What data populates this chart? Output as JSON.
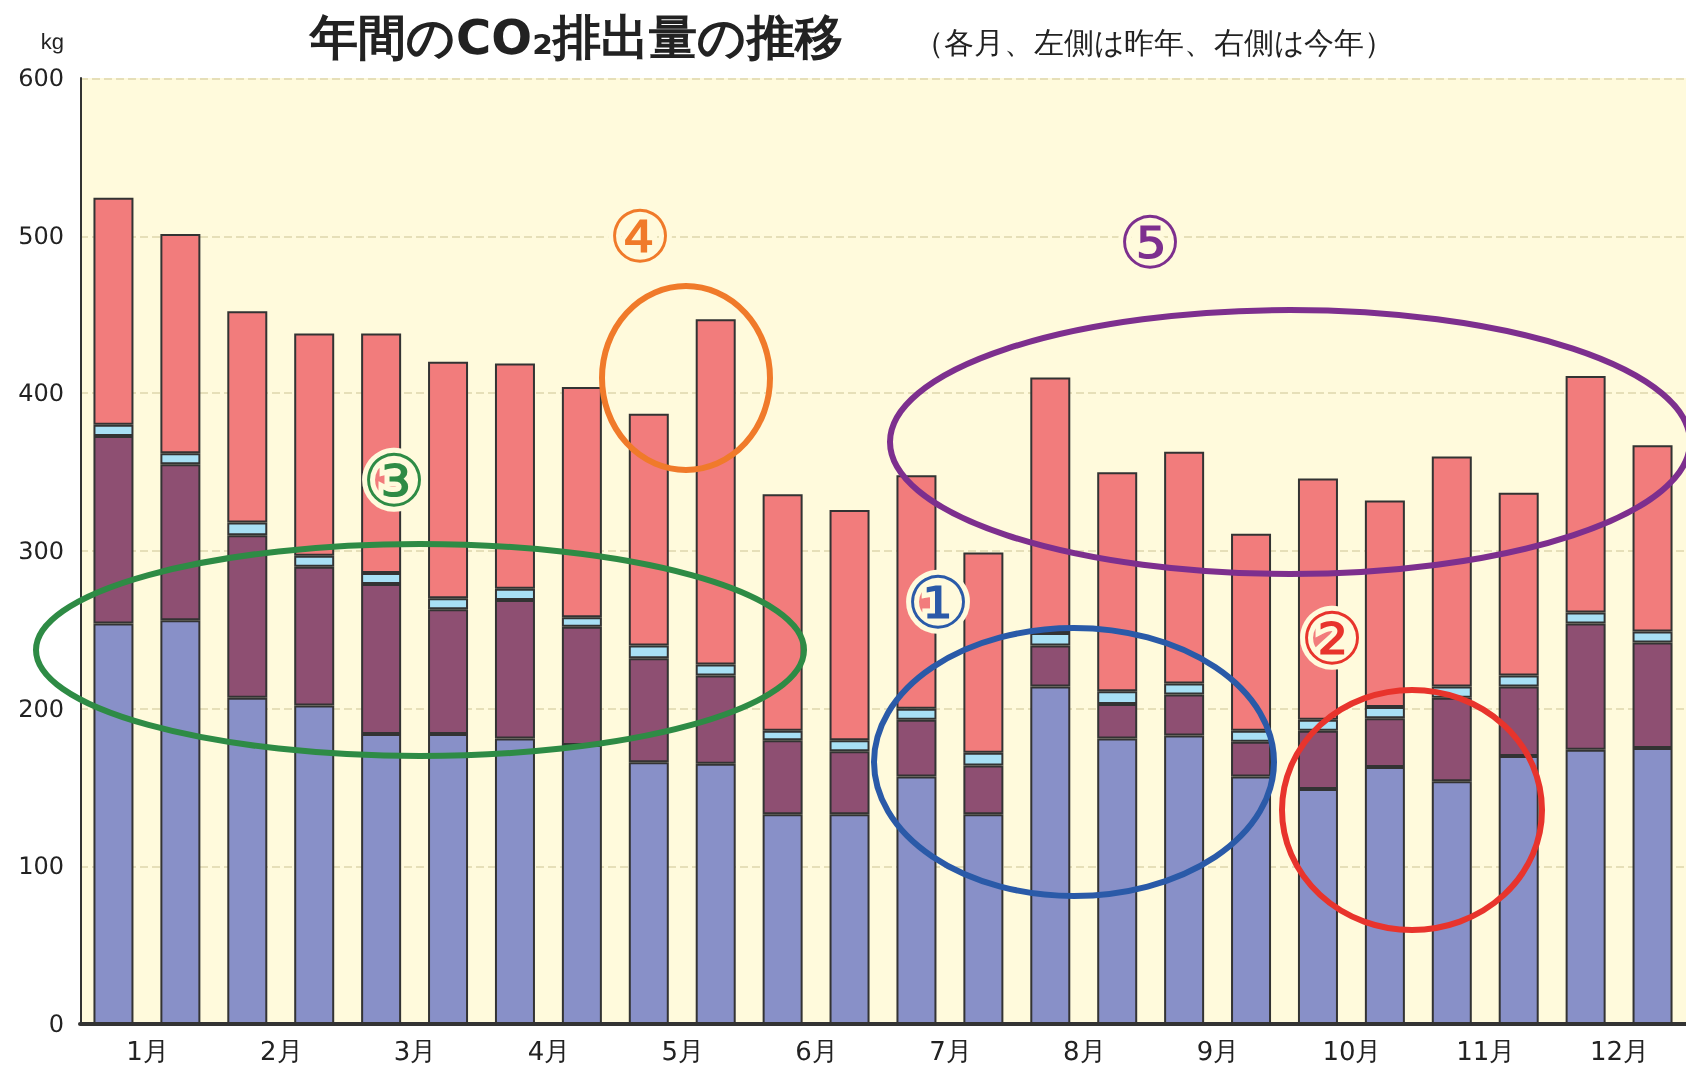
{
  "chart_data": {
    "type": "bar",
    "title": "年間のCO₂排出量の推移",
    "subtitle": "（各月、左側は昨年、右側は今年）",
    "ylabel": "kg",
    "categories": [
      "1月",
      null,
      "2月",
      null,
      "3月",
      null,
      "4月",
      null,
      "5月",
      null,
      "6月",
      null,
      "7月",
      null,
      "8月",
      null,
      "9月",
      null,
      "10月",
      null,
      "11月",
      null,
      "12月",
      null
    ],
    "stacked": true,
    "ylim": [
      0,
      600
    ],
    "yticks": [
      0,
      100,
      200,
      300,
      400,
      500,
      600
    ],
    "grid": "y",
    "series": [
      {
        "color": "#8890c8",
        "values": [
          254,
          256,
          207,
          202,
          184,
          184,
          181,
          177,
          166,
          165,
          133,
          133,
          157,
          133,
          214,
          181,
          183,
          157,
          149,
          163,
          154,
          170,
          174,
          175
        ]
      },
      {
        "color": "#8e4f72",
        "values": [
          119,
          99,
          103,
          88,
          95,
          79,
          88,
          75,
          66,
          56,
          47,
          40,
          36,
          31,
          26,
          22,
          26,
          22,
          37,
          31,
          53,
          44,
          80,
          67
        ]
      },
      {
        "color": "#a8e0f5",
        "values": [
          7,
          7,
          8,
          7,
          7,
          7,
          7,
          6,
          8,
          7,
          6,
          7,
          7,
          8,
          8,
          8,
          7,
          7,
          7,
          7,
          7,
          7,
          7,
          7
        ]
      },
      {
        "color": "#f27c7c",
        "values": [
          144,
          139,
          134,
          141,
          152,
          150,
          143,
          146,
          147,
          219,
          150,
          146,
          148,
          127,
          162,
          139,
          147,
          125,
          153,
          131,
          146,
          116,
          150,
          118
        ]
      }
    ],
    "annotations": [
      "①",
      "②",
      "③",
      "④",
      "⑤"
    ]
  }
}
